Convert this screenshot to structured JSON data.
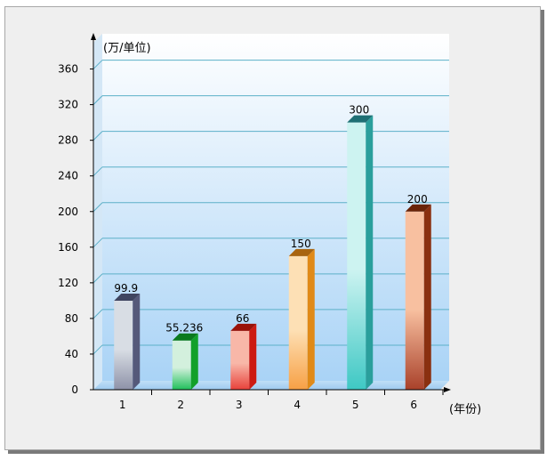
{
  "chart_data": {
    "type": "bar",
    "ylabel": "(万/单位)",
    "xlabel": "(年份)",
    "categories": [
      "1",
      "2",
      "3",
      "4",
      "5",
      "6"
    ],
    "values": [
      99.9,
      55.236,
      66,
      150,
      300,
      200
    ],
    "value_labels": [
      "99.9",
      "55.236",
      "66",
      "150",
      "300",
      "200"
    ],
    "yticks": [
      "0",
      "40",
      "80",
      "120",
      "160",
      "200",
      "240",
      "280",
      "320",
      "360"
    ],
    "ylim": [
      0,
      360
    ],
    "grid": true,
    "colors": [
      {
        "front": "#8e92a8",
        "light": "#d8dde4",
        "side": "#55597a",
        "top": "#3f4560"
      },
      {
        "front": "#1fbf5a",
        "light": "#d3f0dd",
        "side": "#12a02a",
        "top": "#0b7a1d"
      },
      {
        "front": "#e8413a",
        "light": "#f8b7a8",
        "side": "#cc1a12",
        "top": "#9a1208"
      },
      {
        "front": "#f7a045",
        "light": "#fde0b5",
        "side": "#e08a18",
        "top": "#a86410"
      },
      {
        "front": "#3ec8c4",
        "light": "#cdf3f1",
        "side": "#2a9f9c",
        "top": "#1e6f74"
      },
      {
        "front": "#a9412a",
        "light": "#f8c0a0",
        "side": "#8a3010",
        "top": "#6a2408"
      }
    ]
  }
}
